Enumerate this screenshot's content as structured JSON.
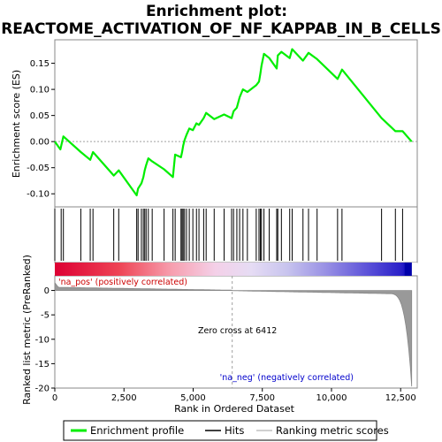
{
  "chart_data": {
    "type": "line",
    "title_line1": "Enrichment plot:",
    "title_line2": "REACTOME_ACTIVATION_OF_NF_KAPPAB_IN_B_CELLS",
    "xlabel": "Rank in Ordered Dataset",
    "ylabel_top": "Enrichment score (ES)",
    "ylabel_bottom": "Ranked list metric (PreRanked)",
    "x_ticks": [
      0,
      2500,
      5000,
      7500,
      10000,
      12500
    ],
    "x_tick_labels": [
      "0",
      "2,500",
      "5,000",
      "7,500",
      "10,000",
      "12,500"
    ],
    "xlim": [
      0,
      13100
    ],
    "es_ylim": [
      -0.125,
      0.195
    ],
    "es_ticks": [
      -0.1,
      -0.05,
      0.0,
      0.05,
      0.1,
      0.15
    ],
    "es_tick_labels": [
      "-0.10",
      "-0.05",
      "0.00",
      "0.05",
      "0.10",
      "0.15"
    ],
    "metric_ylim": [
      -20,
      3
    ],
    "metric_ticks": [
      0,
      -5,
      -10,
      -15,
      -20
    ],
    "metric_tick_labels": [
      "0",
      "-5",
      "-10",
      "-15",
      "-20"
    ],
    "hits": [
      0,
      230,
      310,
      940,
      1280,
      1380,
      2130,
      2310,
      2960,
      3010,
      3130,
      3200,
      3250,
      3300,
      3380,
      3520,
      3950,
      4270,
      4350,
      4560,
      4600,
      4640,
      4690,
      4760,
      4860,
      4990,
      5120,
      5210,
      5380,
      5470,
      5760,
      6120,
      6390,
      6460,
      6580,
      6680,
      6800,
      6960,
      7280,
      7380,
      7430,
      7470,
      7560,
      7750,
      8020,
      8060,
      8190,
      8490,
      8580,
      8970,
      9170,
      9480,
      10220,
      10380,
      11810,
      12310,
      12570
    ],
    "es_points": [
      [
        0,
        0.0
      ],
      [
        200,
        -0.015
      ],
      [
        310,
        0.01
      ],
      [
        940,
        -0.02
      ],
      [
        1280,
        -0.035
      ],
      [
        1380,
        -0.02
      ],
      [
        2130,
        -0.065
      ],
      [
        2310,
        -0.055
      ],
      [
        2960,
        -0.103
      ],
      [
        3010,
        -0.09
      ],
      [
        3130,
        -0.08
      ],
      [
        3200,
        -0.068
      ],
      [
        3250,
        -0.055
      ],
      [
        3300,
        -0.045
      ],
      [
        3380,
        -0.032
      ],
      [
        3520,
        -0.038
      ],
      [
        3950,
        -0.053
      ],
      [
        4270,
        -0.068
      ],
      [
        4350,
        -0.025
      ],
      [
        4560,
        -0.03
      ],
      [
        4600,
        -0.02
      ],
      [
        4640,
        -0.008
      ],
      [
        4690,
        0.003
      ],
      [
        4760,
        0.013
      ],
      [
        4860,
        0.025
      ],
      [
        4990,
        0.022
      ],
      [
        5120,
        0.035
      ],
      [
        5210,
        0.032
      ],
      [
        5380,
        0.045
      ],
      [
        5470,
        0.055
      ],
      [
        5760,
        0.043
      ],
      [
        6120,
        0.052
      ],
      [
        6390,
        0.045
      ],
      [
        6460,
        0.058
      ],
      [
        6580,
        0.065
      ],
      [
        6680,
        0.085
      ],
      [
        6800,
        0.1
      ],
      [
        6960,
        0.095
      ],
      [
        7280,
        0.108
      ],
      [
        7380,
        0.115
      ],
      [
        7430,
        0.13
      ],
      [
        7470,
        0.145
      ],
      [
        7560,
        0.168
      ],
      [
        7750,
        0.16
      ],
      [
        8020,
        0.14
      ],
      [
        8060,
        0.165
      ],
      [
        8190,
        0.172
      ],
      [
        8490,
        0.16
      ],
      [
        8580,
        0.177
      ],
      [
        8970,
        0.155
      ],
      [
        9170,
        0.17
      ],
      [
        9480,
        0.158
      ],
      [
        10220,
        0.12
      ],
      [
        10380,
        0.138
      ],
      [
        11810,
        0.045
      ],
      [
        12310,
        0.02
      ],
      [
        12570,
        0.02
      ],
      [
        12900,
        0.0
      ]
    ],
    "zero_cross_label": "Zero cross at 6412",
    "zero_cross_rank": 6412,
    "pos_label": "'na_pos' (positively correlated)",
    "neg_label": "'na_neg' (negatively correlated)",
    "colors": {
      "enrichment_line": "#00ee00",
      "hits": "#000000",
      "pos_text": "#cc0000",
      "neg_text": "#0000cc",
      "metric_fill": "#999999",
      "zero_line": "#a0a0a0"
    },
    "legend": [
      {
        "label": "Enrichment profile",
        "swatch": "green-line"
      },
      {
        "label": "Hits",
        "swatch": "black-line"
      },
      {
        "label": "Ranking metric scores",
        "swatch": "gray-line"
      }
    ]
  }
}
